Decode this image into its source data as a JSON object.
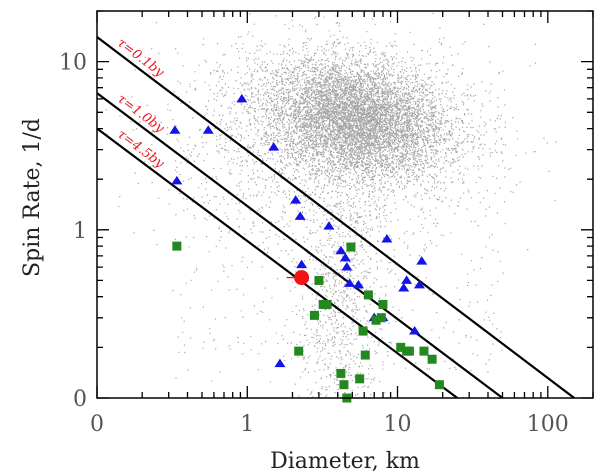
{
  "chart_data": {
    "type": "scatter",
    "title": "",
    "xlabel": "Diameter, km",
    "ylabel": "Spin Rate, 1/d",
    "x_scale": "log",
    "y_scale": "log",
    "xlim": [
      0.1,
      200
    ],
    "ylim": [
      0.1,
      20
    ],
    "x_ticks": [
      {
        "value": 0.1,
        "label": "0"
      },
      {
        "value": 1,
        "label": "1"
      },
      {
        "value": 10,
        "label": "10"
      },
      {
        "value": 100,
        "label": "100"
      }
    ],
    "y_ticks": [
      {
        "value": 0.1,
        "label": "0"
      },
      {
        "value": 1,
        "label": "1"
      },
      {
        "value": 10,
        "label": "10"
      }
    ],
    "grid": false,
    "legend": "none",
    "colors": {
      "background_points": "#a6a6a6",
      "triangles": "#1414e6",
      "squares": "#22881f",
      "highlight": "#f01414",
      "lines": "#000000",
      "annotations": "#e8141c"
    },
    "lines": [
      {
        "label": "τ=0.1by",
        "x": [
          0.1,
          150
        ],
        "y": [
          14.0,
          0.1
        ]
      },
      {
        "label": "τ=1.0by",
        "x": [
          0.1,
          50
        ],
        "y": [
          6.5,
          0.1
        ]
      },
      {
        "label": "τ=4.5by",
        "x": [
          0.1,
          25
        ],
        "y": [
          4.0,
          0.1
        ]
      }
    ],
    "series": [
      {
        "marker": "triangle",
        "x": [
          0.33,
          0.34,
          0.55,
          0.92,
          1.5,
          1.65,
          2.1,
          2.25,
          2.3,
          3.5,
          4.2,
          4.5,
          4.6,
          4.8,
          5.5,
          7.0,
          8.0,
          8.5,
          11.0,
          11.5,
          13.0,
          14.0,
          14.5
        ],
        "y": [
          3.9,
          1.95,
          3.9,
          6.0,
          3.1,
          0.16,
          1.5,
          1.2,
          0.62,
          1.05,
          0.75,
          0.68,
          0.6,
          0.48,
          0.47,
          0.3,
          0.3,
          0.88,
          0.45,
          0.5,
          0.25,
          0.47,
          0.65
        ]
      },
      {
        "marker": "square",
        "x": [
          0.34,
          2.2,
          2.8,
          3.0,
          3.2,
          3.4,
          4.2,
          4.4,
          4.6,
          4.9,
          5.6,
          5.9,
          6.1,
          6.4,
          7.2,
          7.8,
          8.0,
          10.5,
          11.5,
          12.0,
          15.0,
          17.0,
          19.0
        ],
        "y": [
          0.8,
          0.19,
          0.31,
          0.5,
          0.36,
          0.36,
          0.14,
          0.12,
          0.1,
          0.79,
          0.13,
          0.25,
          0.18,
          0.41,
          0.29,
          0.3,
          0.36,
          0.2,
          0.19,
          0.19,
          0.19,
          0.17,
          0.12
        ]
      },
      {
        "marker": "circle",
        "x": [
          2.3
        ],
        "y": [
          0.52
        ]
      }
    ]
  }
}
